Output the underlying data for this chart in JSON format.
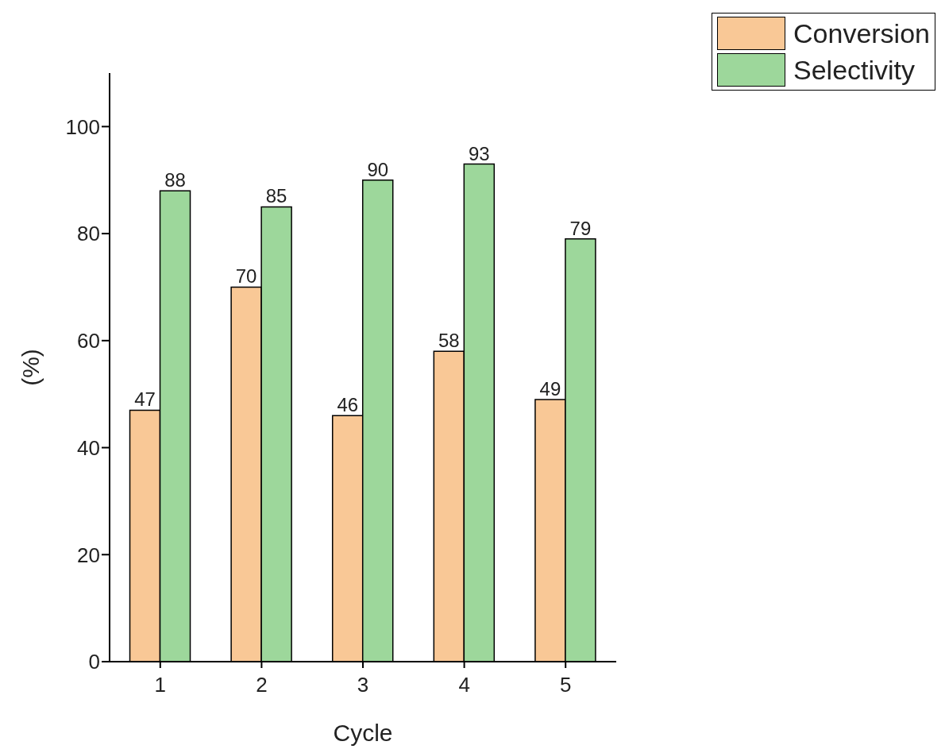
{
  "chart_data": {
    "type": "bar",
    "xlabel": "Cycle",
    "ylabel": "(%)",
    "categories": [
      "1",
      "2",
      "3",
      "4",
      "5"
    ],
    "series": [
      {
        "name": "Conversion",
        "color": "#f9c896",
        "values": [
          47,
          70,
          46,
          58,
          49
        ]
      },
      {
        "name": "Selectivity",
        "color": "#9dd79b",
        "values": [
          88,
          85,
          90,
          93,
          79
        ]
      }
    ],
    "ylim": [
      0,
      110
    ],
    "yticks": [
      0,
      20,
      40,
      60,
      80,
      100
    ],
    "grid": false,
    "legend": "top right",
    "data_labels": true
  }
}
